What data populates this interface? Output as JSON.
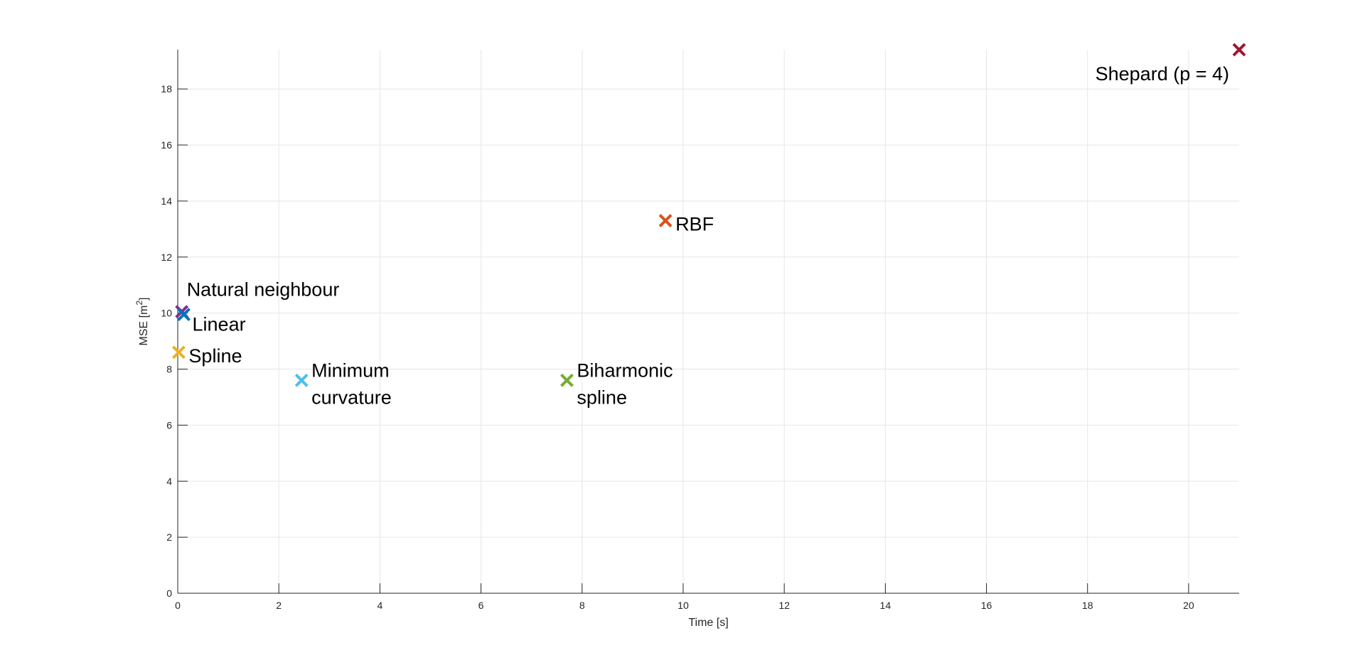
{
  "chart_data": {
    "type": "scatter",
    "xlabel": "Time [s]",
    "ylabel_main": "MSE [m",
    "ylabel_sup": "2",
    "ylabel_end": "]",
    "xlim": [
      0,
      21
    ],
    "ylim": [
      0,
      19.4
    ],
    "xticks": [
      0,
      2,
      4,
      6,
      8,
      10,
      12,
      14,
      16,
      18,
      20
    ],
    "yticks": [
      0,
      2,
      4,
      6,
      8,
      10,
      12,
      14,
      16,
      18
    ],
    "grid": true,
    "marker": "x",
    "points": [
      {
        "lines": [
          "Natural neighbour"
        ],
        "x": 0.08,
        "y": 10.05,
        "color": "#7E2F8E",
        "label_pos": "above"
      },
      {
        "lines": [
          "Linear"
        ],
        "x": 0.12,
        "y": 9.95,
        "color": "#0072BD",
        "label_pos": "below-right"
      },
      {
        "lines": [
          "Spline"
        ],
        "x": 0.02,
        "y": 8.6,
        "color": "#EDB120",
        "label_pos": "right"
      },
      {
        "lines": [
          "Minimum",
          "curvature"
        ],
        "x": 2.45,
        "y": 7.6,
        "color": "#4DBEEE",
        "label_pos": "right"
      },
      {
        "lines": [
          "Biharmonic",
          "spline"
        ],
        "x": 7.7,
        "y": 7.6,
        "color": "#77AC30",
        "label_pos": "right"
      },
      {
        "lines": [
          "RBF"
        ],
        "x": 9.65,
        "y": 13.3,
        "color": "#D95319",
        "label_pos": "right"
      },
      {
        "lines": [
          "Shepard (p = 4)"
        ],
        "x": 21.0,
        "y": 19.4,
        "color": "#A2142F",
        "label_pos": "below-left"
      }
    ]
  }
}
